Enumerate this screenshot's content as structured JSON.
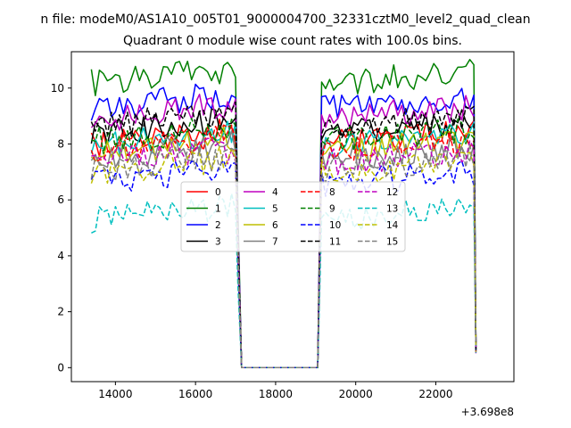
{
  "chart_data": {
    "type": "line",
    "suptitle": "n file: modeM0/AS1A10_005T01_9000004700_32331cztM0_level2_quad_clean",
    "title": "Quadrant 0 module wise count rates with 100.0s bins.",
    "xlabel": "",
    "ylabel": "",
    "x_offset_label": "+3.698e8",
    "xlim": [
      12900,
      23950
    ],
    "ylim": [
      -0.5,
      11.3
    ],
    "x_ticks": [
      {
        "value": 14000,
        "label": "14000"
      },
      {
        "value": 16000,
        "label": "16000"
      },
      {
        "value": 18000,
        "label": "18000"
      },
      {
        "value": 20000,
        "label": "20000"
      },
      {
        "value": 22000,
        "label": "22000"
      }
    ],
    "y_ticks": [
      {
        "value": 0,
        "label": "0"
      },
      {
        "value": 2,
        "label": "2"
      },
      {
        "value": 4,
        "label": "4"
      },
      {
        "value": 6,
        "label": "6"
      },
      {
        "value": 8,
        "label": "8"
      },
      {
        "value": 10,
        "label": "10"
      }
    ],
    "grid": false,
    "legend_position": "center",
    "legend_columns": 4,
    "x_segments": {
      "first": [
        13400,
        17000,
        100
      ],
      "gap": [
        17150,
        19050
      ],
      "second": [
        19150,
        22950,
        100
      ],
      "end": 23000
    },
    "series": [
      {
        "name": "0",
        "color": "#ff0000",
        "dash": "solid",
        "level": 8.0
      },
      {
        "name": "1",
        "color": "#008000",
        "dash": "solid",
        "level": 10.2
      },
      {
        "name": "2",
        "color": "#0000ff",
        "dash": "solid",
        "level": 9.3
      },
      {
        "name": "3",
        "color": "#000000",
        "dash": "solid",
        "level": 8.4
      },
      {
        "name": "4",
        "color": "#bf00bf",
        "dash": "solid",
        "level": 8.9
      },
      {
        "name": "5",
        "color": "#00bfbf",
        "dash": "solid",
        "level": 7.9
      },
      {
        "name": "6",
        "color": "#bfbf00",
        "dash": "solid",
        "level": 7.7
      },
      {
        "name": "7",
        "color": "#808080",
        "dash": "solid",
        "level": 7.5
      },
      {
        "name": "8",
        "color": "#ff0000",
        "dash": "dashed",
        "level": 7.8
      },
      {
        "name": "9",
        "color": "#008000",
        "dash": "dashed",
        "level": 8.1
      },
      {
        "name": "10",
        "color": "#0000ff",
        "dash": "dashed",
        "level": 6.6
      },
      {
        "name": "11",
        "color": "#000000",
        "dash": "dashed",
        "level": 8.6
      },
      {
        "name": "12",
        "color": "#bf00bf",
        "dash": "dashed",
        "level": 7.3
      },
      {
        "name": "13",
        "color": "#00bfbf",
        "dash": "dashed",
        "level": 5.3
      },
      {
        "name": "14",
        "color": "#bfbf00",
        "dash": "dashed",
        "level": 7.0
      },
      {
        "name": "15",
        "color": "#808080",
        "dash": "dashed",
        "level": 7.1
      }
    ]
  }
}
